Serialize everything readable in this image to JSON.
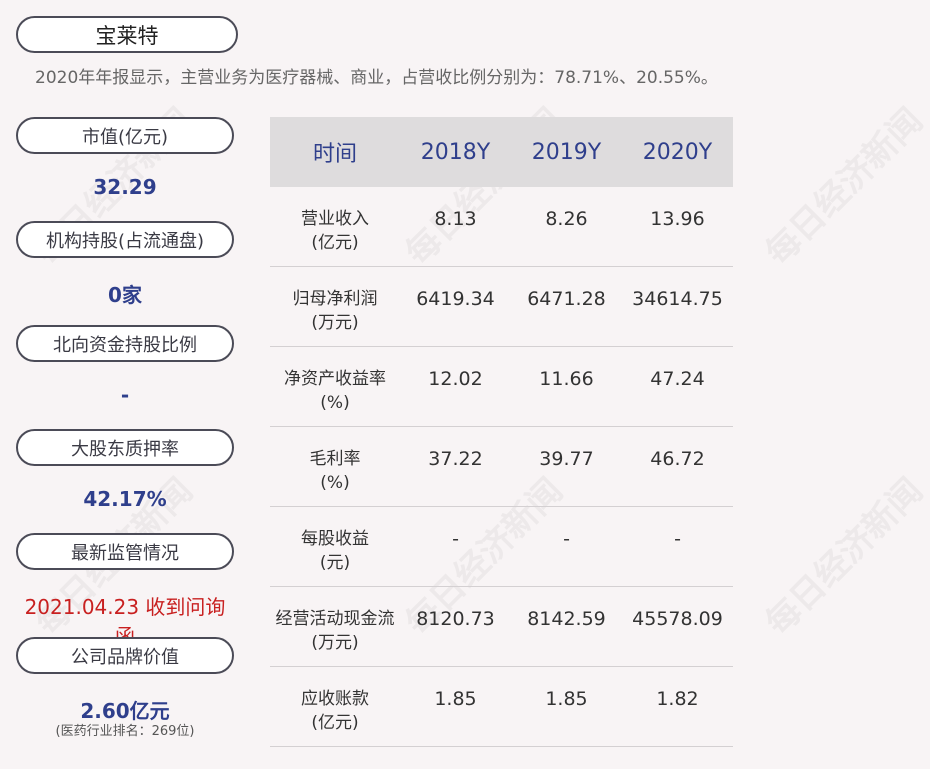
{
  "company": "宝莱特",
  "summary": "2020年年报显示，主营业务为医疗器械、商业，占营收比例分别为：78.71%、20.55%。",
  "metrics": [
    {
      "label": "市值(亿元)",
      "value": "32.29"
    },
    {
      "label": "机构持股(占流通盘)",
      "value": "0家"
    },
    {
      "label": "北向资金持股比例",
      "value": "-"
    },
    {
      "label": "大股东质押率",
      "value": "42.17%"
    },
    {
      "label": "最新监管情况",
      "value": "2021.04.23 收到问询函"
    },
    {
      "label": "公司品牌价值",
      "value": "2.60亿元",
      "note": "(医药行业排名：269位)"
    }
  ],
  "table": {
    "headers": [
      "时间",
      "2018Y",
      "2019Y",
      "2020Y"
    ],
    "rows": [
      {
        "label1": "营业收入",
        "label2": "(亿元)",
        "values": [
          "8.13",
          "8.26",
          "13.96"
        ]
      },
      {
        "label1": "归母净利润",
        "label2": "(万元)",
        "values": [
          "6419.34",
          "6471.28",
          "34614.75"
        ]
      },
      {
        "label1": "净资产收益率",
        "label2": "(%)",
        "values": [
          "12.02",
          "11.66",
          "47.24"
        ]
      },
      {
        "label1": "毛利率",
        "label2": "(%)",
        "values": [
          "37.22",
          "39.77",
          "46.72"
        ]
      },
      {
        "label1": "每股收益",
        "label2": "(元)",
        "values": [
          "-",
          "-",
          "-"
        ]
      },
      {
        "label1": "经营活动现金流",
        "label2": "(万元)",
        "values": [
          "8120.73",
          "8142.59",
          "45578.09"
        ]
      },
      {
        "label1": "应收账款",
        "label2": "(亿元)",
        "values": [
          "1.85",
          "1.85",
          "1.82"
        ]
      }
    ]
  },
  "watermark": "每日经济新闻",
  "colors": {
    "accent": "#2f3f8c",
    "alert": "#c82020",
    "header_bg": "#dedcdd"
  }
}
